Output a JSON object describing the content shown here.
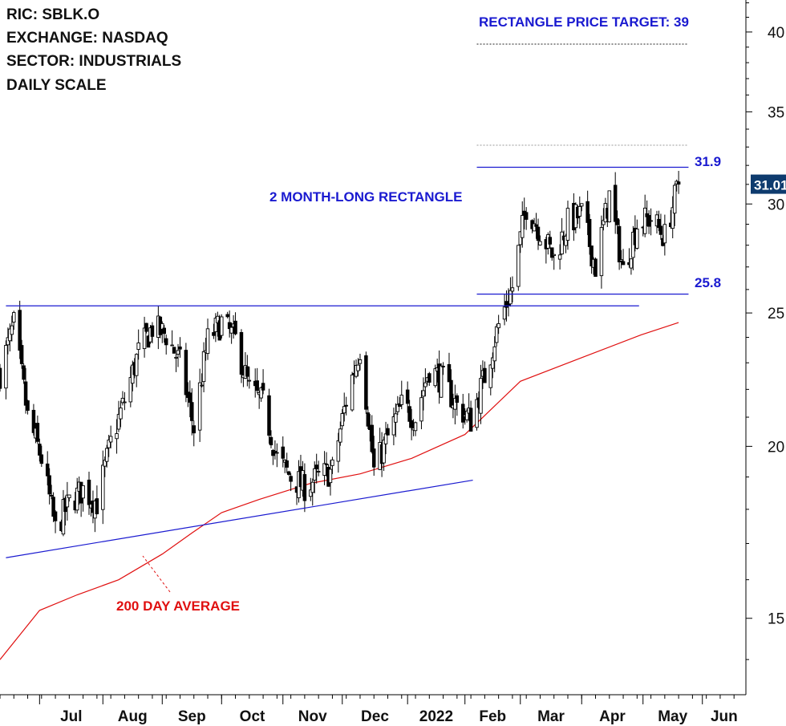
{
  "info": {
    "ric": "RIC: SBLK.O",
    "exchange": "EXCHANGE: NASDAQ",
    "sector": "SECTOR: INDUSTRIALS",
    "scale": "DAILY SCALE"
  },
  "annotations": {
    "target": "RECTANGLE PRICE TARGET: 39",
    "rectangle": "2 MONTH-LONG RECTANGLE",
    "ma": "200 DAY AVERAGE",
    "upper_level": "31.9",
    "lower_level": "25.8",
    "last_price": "31.01"
  },
  "colors": {
    "candle": "#000000",
    "trendline": "#1a1ad0",
    "ma": "#e01010",
    "badge": "#0e3b6e"
  },
  "chart_data": {
    "type": "line",
    "title": "",
    "xlabel": "",
    "ylabel": "",
    "y_scale": "log",
    "ylim": [
      13.2,
      42.2
    ],
    "xlim": [
      "2021-06-11",
      "2022-06-23"
    ],
    "y_ticks": [
      15,
      20,
      25,
      30,
      35,
      40
    ],
    "x_ticks": [
      {
        "label": "Jul",
        "date": "2021-07-01"
      },
      {
        "label": "Aug",
        "date": "2021-08-02"
      },
      {
        "label": "Sep",
        "date": "2021-09-01"
      },
      {
        "label": "Oct",
        "date": "2021-10-01"
      },
      {
        "label": "Nov",
        "date": "2021-11-01"
      },
      {
        "label": "Dec",
        "date": "2021-12-01"
      },
      {
        "label": "2022",
        "date": "2022-01-03"
      },
      {
        "label": "Feb",
        "date": "2022-02-01"
      },
      {
        "label": "Mar",
        "date": "2022-03-01"
      },
      {
        "label": "Apr",
        "date": "2022-04-01"
      },
      {
        "label": "May",
        "date": "2022-05-02"
      },
      {
        "label": "Jun",
        "date": "2022-06-01"
      }
    ],
    "series": [
      {
        "name": "SBLK.O",
        "kind": "candlestick_approx_close",
        "x": [
          "2021-06-11",
          "2021-06-18",
          "2021-06-25",
          "2021-07-02",
          "2021-07-09",
          "2021-07-16",
          "2021-07-23",
          "2021-07-30",
          "2021-08-06",
          "2021-08-13",
          "2021-08-20",
          "2021-08-27",
          "2021-09-03",
          "2021-09-10",
          "2021-09-17",
          "2021-09-24",
          "2021-10-01",
          "2021-10-08",
          "2021-10-15",
          "2021-10-22",
          "2021-10-29",
          "2021-11-05",
          "2021-11-12",
          "2021-11-19",
          "2021-11-26",
          "2021-12-03",
          "2021-12-10",
          "2021-12-17",
          "2021-12-24",
          "2021-12-31",
          "2022-01-07",
          "2022-01-14",
          "2022-01-21",
          "2022-01-28",
          "2022-02-04",
          "2022-02-11",
          "2022-02-18",
          "2022-02-25",
          "2022-03-04",
          "2022-03-11",
          "2022-03-18",
          "2022-03-25",
          "2022-04-01",
          "2022-04-08",
          "2022-04-15",
          "2022-04-22",
          "2022-04-29",
          "2022-05-06",
          "2022-05-13",
          "2022-05-20"
        ],
        "y": [
          22.6,
          24.5,
          21.0,
          19.6,
          17.4,
          18.2,
          18.6,
          18.2,
          20.1,
          21.6,
          23.4,
          24.4,
          24.1,
          23.0,
          20.6,
          23.9,
          24.6,
          23.9,
          22.0,
          21.5,
          19.6,
          19.0,
          18.7,
          19.0,
          19.2,
          21.6,
          23.6,
          19.2,
          20.3,
          21.4,
          21.0,
          22.8,
          22.3,
          21.4,
          20.9,
          22.5,
          24.5,
          26.1,
          29.9,
          28.7,
          27.4,
          29.1,
          29.5,
          27.0,
          30.4,
          26.8,
          29.0,
          29.3,
          28.4,
          31.01
        ]
      },
      {
        "name": "200 DAY AVERAGE",
        "x": [
          "2021-06-11",
          "2021-07-01",
          "2021-07-20",
          "2021-08-10",
          "2021-09-01",
          "2021-09-16",
          "2021-10-01",
          "2021-10-20",
          "2021-11-15",
          "2021-12-10",
          "2022-01-05",
          "2022-02-01",
          "2022-03-01",
          "2022-04-01",
          "2022-05-01",
          "2022-05-20"
        ],
        "y": [
          14.0,
          15.2,
          15.6,
          16.0,
          16.7,
          17.3,
          17.9,
          18.3,
          18.8,
          19.1,
          19.6,
          20.4,
          22.3,
          23.2,
          24.1,
          24.6
        ]
      }
    ],
    "levels": [
      {
        "label": "31.9",
        "value": 31.9
      },
      {
        "label": "25.8",
        "value": 25.8
      },
      {
        "label": "RECTANGLE PRICE TARGET: 39",
        "value": 39.2
      }
    ]
  }
}
